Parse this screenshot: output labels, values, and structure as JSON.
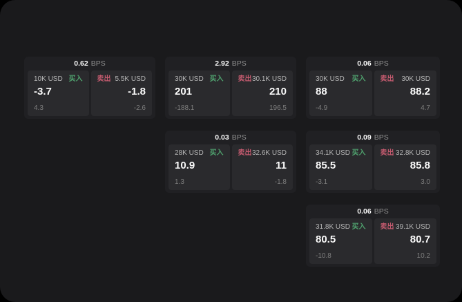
{
  "theme": {
    "page_background": "#000000",
    "panel_background": "#1a1a1c",
    "card_background": "#202023",
    "tile_background": "#2a2a2d",
    "buy_color": "#4fa06d",
    "sell_color": "#c25a6e",
    "value_color": "#fafafa",
    "muted_color": "#7d7d7d"
  },
  "labels": {
    "bps_unit": "BPS",
    "buy": "买入",
    "sell": "卖出"
  },
  "cards": [
    {
      "spread": "0.62",
      "buy": {
        "amount": "10K USD",
        "value": "-3.7",
        "change": "4.3"
      },
      "sell": {
        "amount": "5.5K USD",
        "value": "-1.8",
        "change": "-2.6"
      }
    },
    {
      "spread": "2.92",
      "buy": {
        "amount": "30K USD",
        "value": "201",
        "change": "-188.1"
      },
      "sell": {
        "amount": "30.1K USD",
        "value": "210",
        "change": "196.5"
      }
    },
    {
      "spread": "0.06",
      "buy": {
        "amount": "30K USD",
        "value": "88",
        "change": "-4.9"
      },
      "sell": {
        "amount": "30K USD",
        "value": "88.2",
        "change": "4.7"
      }
    },
    {
      "spread": "0.03",
      "buy": {
        "amount": "28K USD",
        "value": "10.9",
        "change": "1.3"
      },
      "sell": {
        "amount": "32.6K USD",
        "value": "11",
        "change": "-1.8"
      }
    },
    {
      "spread": "0.09",
      "buy": {
        "amount": "34.1K USD",
        "value": "85.5",
        "change": "-3.1"
      },
      "sell": {
        "amount": "32.8K USD",
        "value": "85.8",
        "change": "3.0"
      }
    },
    {
      "spread": "0.06",
      "buy": {
        "amount": "31.8K USD",
        "value": "80.5",
        "change": "-10.8"
      },
      "sell": {
        "amount": "39.1K USD",
        "value": "80.7",
        "change": "10.2"
      }
    }
  ]
}
